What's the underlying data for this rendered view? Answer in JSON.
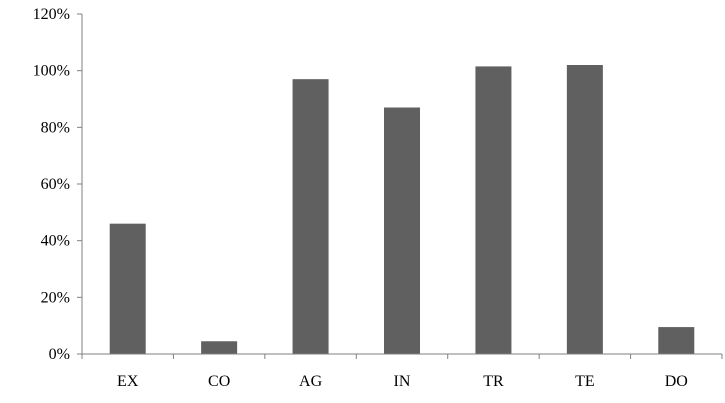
{
  "chart_data": {
    "type": "bar",
    "title": "",
    "xlabel": "",
    "ylabel": "",
    "categories": [
      "EX",
      "CO",
      "AG",
      "IN",
      "TR",
      "TE",
      "DO"
    ],
    "values": [
      46,
      4.5,
      97,
      87,
      101.5,
      102,
      9.5
    ],
    "value_unit": "%",
    "ylim": [
      0,
      120
    ],
    "yticks": [
      0,
      20,
      40,
      60,
      80,
      100,
      120
    ],
    "ytick_labels": [
      "0%",
      "20%",
      "40%",
      "60%",
      "80%",
      "100%",
      "120%"
    ],
    "grid": false,
    "legend": "none",
    "colors": {
      "bar": "#606060",
      "axis": "#808080",
      "text": "#000000"
    }
  }
}
